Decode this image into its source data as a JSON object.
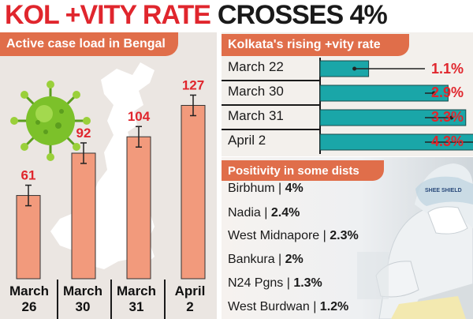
{
  "headline": {
    "part1": "KOL +VITY RATE",
    "part2": "CROSSES 4%"
  },
  "colors": {
    "accent_red": "#e0262d",
    "label_orange": "#e06e4a",
    "bar_salmon": "#f29a7c",
    "bar_teal": "#1aa6a8",
    "virus_green": "#7cc12a"
  },
  "chart_data": [
    {
      "type": "bar",
      "title": "Active case load in Bengal",
      "categories": [
        "March 26",
        "March 30",
        "March 31",
        "April 2"
      ],
      "category_lines": [
        [
          "March",
          "26"
        ],
        [
          "March",
          "30"
        ],
        [
          "March",
          "31"
        ],
        [
          "April",
          "2"
        ]
      ],
      "values": [
        61,
        92,
        104,
        127
      ],
      "value_labels": [
        "61",
        "92",
        "104",
        "127"
      ],
      "ylim": [
        0,
        140
      ]
    },
    {
      "type": "bar",
      "orientation": "horizontal",
      "title": "Kolkata's rising +vity rate",
      "categories": [
        "March 22",
        "March 30",
        "March 31",
        "April 2"
      ],
      "values": [
        1.1,
        2.9,
        3.3,
        4.3
      ],
      "value_labels": [
        "1.1%",
        "2.9%",
        "3.3%",
        "4.3%"
      ],
      "unit": "%",
      "xlim": [
        0,
        4.5
      ]
    }
  ],
  "districts": {
    "title": "Positivity in some dists",
    "items": [
      {
        "name": "Birbhum",
        "value": "4%"
      },
      {
        "name": "Nadia",
        "value": "2.4%"
      },
      {
        "name": "West Midnapore",
        "value": "2.3%"
      },
      {
        "name": "Bankura",
        "value": "2%"
      },
      {
        "name": "N24 Pgns",
        "value": "1.3%"
      },
      {
        "name": "West Burdwan",
        "value": "1.2%"
      }
    ],
    "photo_visor_text": "SHEE SHIELD"
  },
  "icons": {
    "virus": "coronavirus-icon",
    "map": "west-bengal-map-silhouette"
  }
}
